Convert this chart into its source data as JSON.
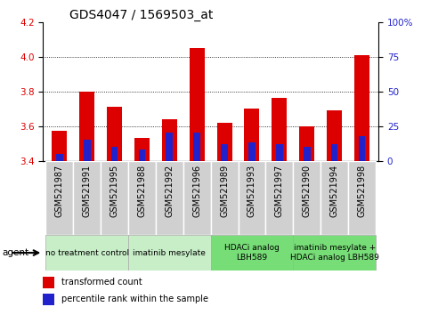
{
  "title": "GDS4047 / 1569503_at",
  "samples": [
    "GSM521987",
    "GSM521991",
    "GSM521995",
    "GSM521988",
    "GSM521992",
    "GSM521996",
    "GSM521989",
    "GSM521993",
    "GSM521997",
    "GSM521990",
    "GSM521994",
    "GSM521998"
  ],
  "transformed_counts": [
    3.57,
    3.8,
    3.71,
    3.53,
    3.64,
    4.05,
    3.62,
    3.7,
    3.76,
    3.6,
    3.69,
    4.01
  ],
  "percentile_ranks": [
    5,
    15,
    10,
    8,
    20,
    20,
    12,
    13,
    12,
    10,
    12,
    18
  ],
  "y_min": 3.4,
  "y_max": 4.2,
  "y_ticks": [
    3.4,
    3.6,
    3.8,
    4.0,
    4.2
  ],
  "y2_ticks": [
    0,
    25,
    50,
    75,
    100
  ],
  "bar_color_red": "#dd0000",
  "bar_color_blue": "#2222cc",
  "bar_width": 0.55,
  "blue_bar_width": 0.25,
  "groups": [
    {
      "label": "no treatment control",
      "start": 0,
      "end": 3,
      "color": "#c8eec8"
    },
    {
      "label": "imatinib mesylate",
      "start": 3,
      "end": 6,
      "color": "#c8eec8"
    },
    {
      "label": "HDACi analog\nLBH589",
      "start": 6,
      "end": 9,
      "color": "#77dd77"
    },
    {
      "label": "imatinib mesylate +\nHDACi analog LBH589",
      "start": 9,
      "end": 12,
      "color": "#77dd77"
    }
  ],
  "sample_bg_color": "#d0d0d0",
  "sample_border_color": "#ffffff",
  "title_fontsize": 10,
  "tick_fontsize": 7.5,
  "sample_fontsize": 7,
  "group_fontsize": 6.5,
  "legend_fontsize": 7,
  "grid_color": "#000000",
  "fig_bg_color": "#ffffff",
  "plot_bg_color": "#ffffff"
}
